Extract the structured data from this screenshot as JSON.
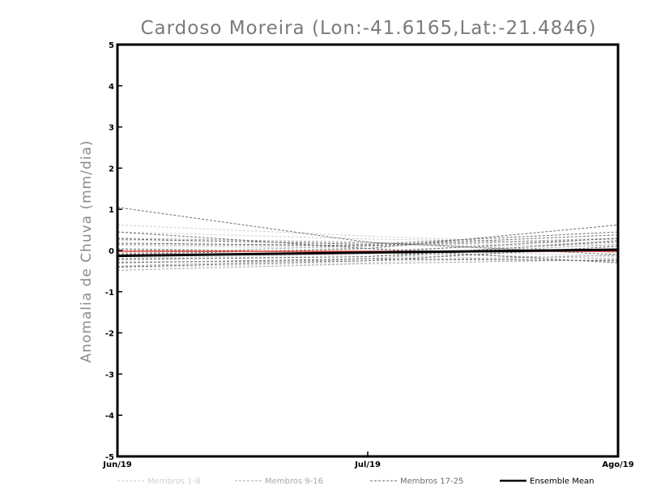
{
  "chart_data": {
    "type": "line",
    "title": "Cardoso Moreira (Lon:-41.6165,Lat:-21.4846)",
    "xlabel": "",
    "ylabel": "Anomalia de Chuva (mm/dia)",
    "categories": [
      "Jun/19",
      "Jul/19",
      "Ago/19"
    ],
    "ylim": [
      -5,
      5
    ],
    "yticks": [
      "5",
      "4",
      "3",
      "2",
      "1",
      "0",
      "-1",
      "-2",
      "-3",
      "-4",
      "-5"
    ],
    "grid": false,
    "legend_position": "bottom",
    "legend": [
      {
        "label": "Membros 1-8",
        "color": "#cfcfcf",
        "style": "dashed"
      },
      {
        "label": "Membros 9-16",
        "color": "#a8a8a8",
        "style": "dashed"
      },
      {
        "label": "Membros 17-25",
        "color": "#6e6e6e",
        "style": "dashed"
      },
      {
        "label": "Ensemble Mean",
        "color": "#000000",
        "style": "solid"
      }
    ],
    "reference_series": {
      "values": [
        -0.02,
        -0.02,
        -0.02
      ],
      "color": "#e84040"
    },
    "ensemble_mean": {
      "values": [
        -0.13,
        -0.05,
        0.02
      ]
    },
    "groups": [
      {
        "color": "#cfcfcf",
        "members": [
          [
            0.62,
            0.35,
            0.12
          ],
          [
            0.45,
            0.28,
            0.18
          ],
          [
            0.25,
            0.18,
            0.1
          ],
          [
            0.12,
            0.05,
            -0.15
          ],
          [
            -0.05,
            0.0,
            0.2
          ],
          [
            -0.18,
            -0.1,
            -0.28
          ],
          [
            -0.3,
            -0.2,
            0.05
          ],
          [
            -0.42,
            -0.3,
            -0.1
          ]
        ]
      },
      {
        "color": "#a8a8a8",
        "members": [
          [
            0.3,
            0.2,
            -0.05
          ],
          [
            0.15,
            0.1,
            0.28
          ],
          [
            0.05,
            -0.05,
            -0.2
          ],
          [
            -0.08,
            0.12,
            0.3
          ],
          [
            -0.2,
            -0.15,
            0.15
          ],
          [
            -0.28,
            -0.25,
            -0.12
          ],
          [
            -0.38,
            -0.2,
            0.25
          ],
          [
            -0.48,
            -0.32,
            -0.22
          ]
        ]
      },
      {
        "color": "#6e6e6e",
        "members": [
          [
            1.05,
            0.2,
            -0.1
          ],
          [
            0.45,
            0.05,
            0.62
          ],
          [
            0.28,
            0.15,
            0.45
          ],
          [
            0.18,
            0.12,
            0.38
          ],
          [
            0.02,
            -0.05,
            0.3
          ],
          [
            -0.1,
            0.05,
            -0.3
          ],
          [
            -0.22,
            -0.15,
            0.22
          ],
          [
            -0.3,
            -0.2,
            -0.25
          ],
          [
            -0.4,
            -0.25,
            0.1
          ]
        ]
      }
    ]
  }
}
